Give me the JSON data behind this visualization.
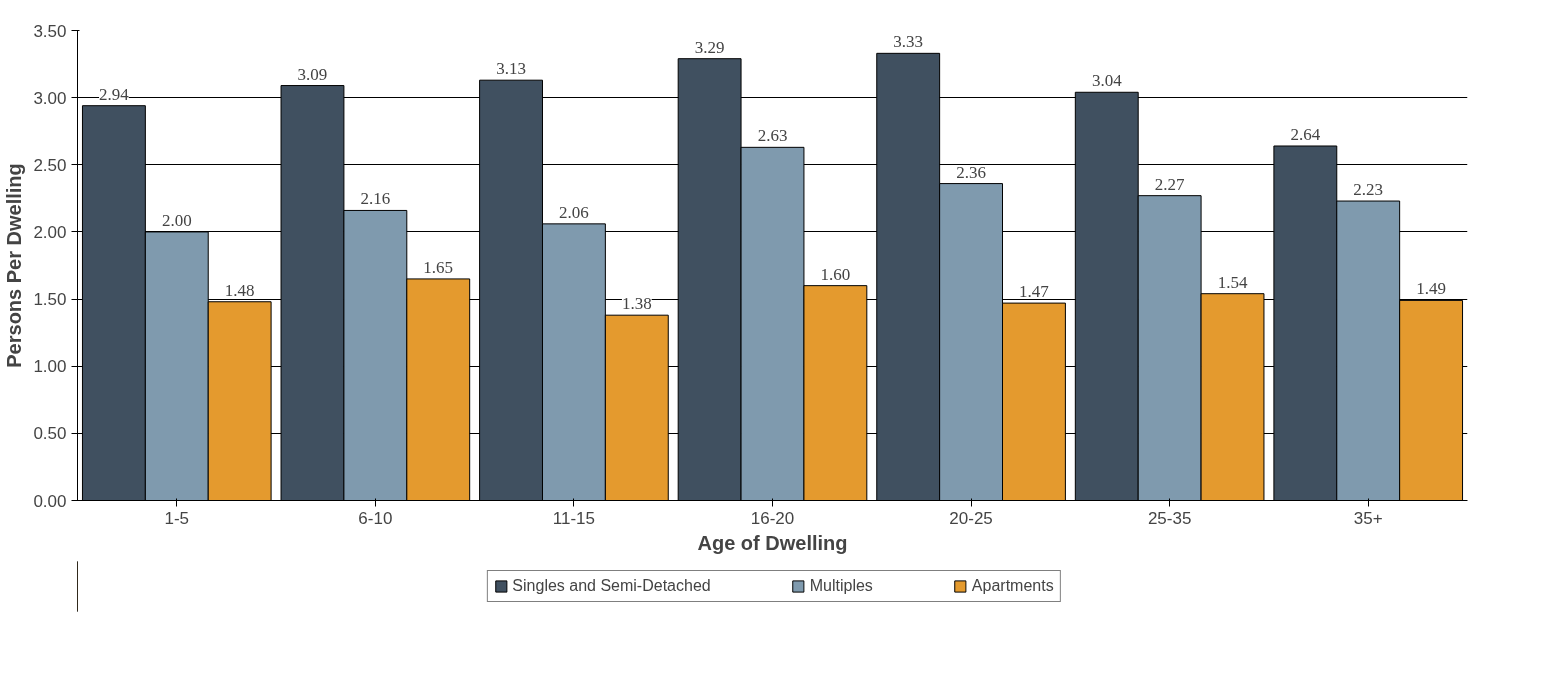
{
  "chart_data": {
    "type": "bar",
    "xlabel": "Age of Dwelling",
    "ylabel": "Persons Per Dwelling",
    "categories": [
      "1-5",
      "6-10",
      "11-15",
      "16-20",
      "20-25",
      "25-35",
      "35+"
    ],
    "series": [
      {
        "name": "Singles and Semi-Detached",
        "color": "#405060",
        "values": [
          2.94,
          3.09,
          3.13,
          3.29,
          3.33,
          3.04,
          2.64
        ],
        "value_labels": [
          "2.94",
          "3.09",
          "3.13",
          "3.29",
          "3.33",
          "3.04",
          "2.64"
        ]
      },
      {
        "name": "Multiples",
        "color": "#7f9aae",
        "values": [
          2.0,
          2.16,
          2.06,
          2.63,
          2.36,
          2.27,
          2.23
        ],
        "value_labels": [
          "2.00",
          "2.16",
          "2.06",
          "2.63",
          "2.36",
          "2.27",
          "2.23"
        ]
      },
      {
        "name": "Apartments",
        "color": "#e49a2e",
        "values": [
          1.48,
          1.65,
          1.38,
          1.6,
          1.47,
          1.54,
          1.49
        ],
        "value_labels": [
          "1.48",
          "1.65",
          "1.38",
          "1.60",
          "1.47",
          "1.54",
          "1.49"
        ]
      }
    ],
    "ylim": [
      0,
      3.5
    ],
    "yticks": [
      {
        "value": 0,
        "label": "0.00"
      },
      {
        "value": 0.5,
        "label": "0.50"
      },
      {
        "value": 1,
        "label": "1.00"
      },
      {
        "value": 1.5,
        "label": "1.50"
      },
      {
        "value": 2,
        "label": "2.00"
      },
      {
        "value": 2.5,
        "label": "2.50"
      },
      {
        "value": 3,
        "label": "3.00"
      },
      {
        "value": 3.5,
        "label": "3.50"
      }
    ],
    "grid": "y",
    "legend": "bottom"
  }
}
